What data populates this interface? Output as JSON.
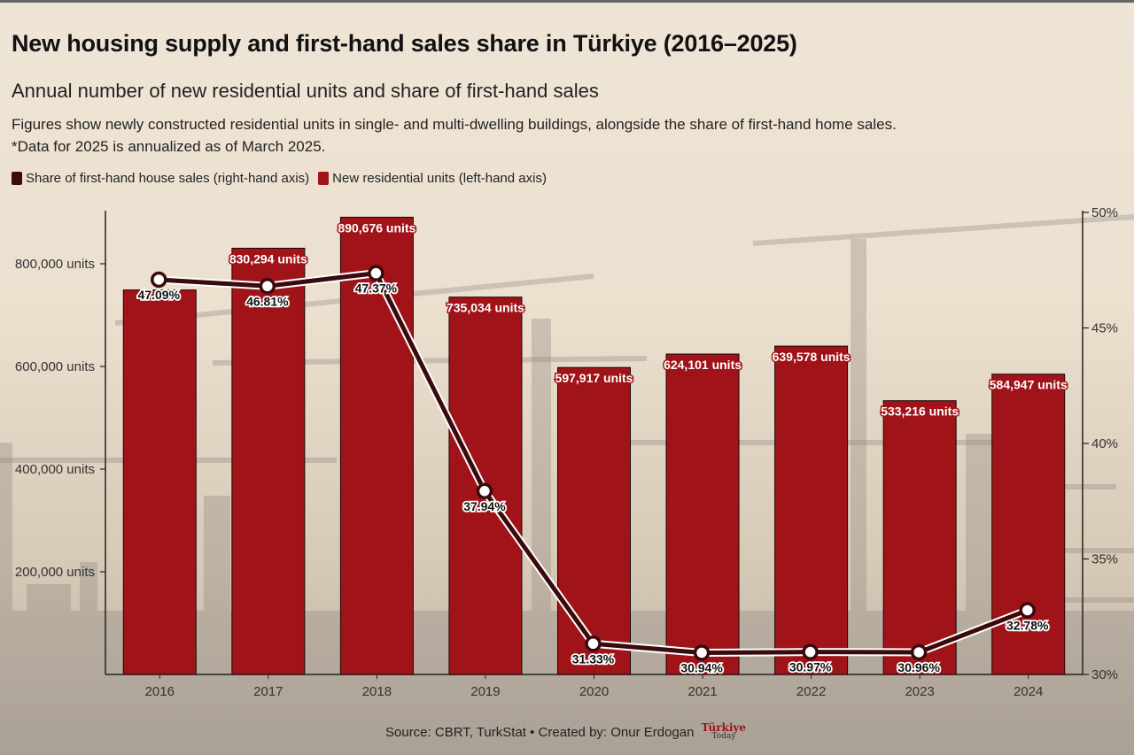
{
  "title": "New housing supply and first-hand sales share in Türkiye (2016–2025)",
  "subtitle": "Annual number of new residential units and share of first-hand sales",
  "description_line1": "Figures show newly constructed residential units in single- and multi-dwelling buildings, alongside the share of first-hand home sales.",
  "description_line2": "*Data for 2025 is annualized as of March 2025.",
  "legend": {
    "line_label": "Share of first-hand house sales (right-hand axis)",
    "bar_label": "New residential units (left-hand axis)"
  },
  "footer": {
    "source": "Source: CBRT, TurkStat • Created by: Onur Erdogan",
    "logo_top": "Türkiye",
    "logo_bottom": "Today"
  },
  "colors": {
    "bar": "#a01319",
    "line": "#3b0a0c",
    "marker_fill": "#ffffff",
    "axis": "#222222"
  },
  "chart_data": {
    "type": "bar",
    "categories": [
      "2016",
      "2017",
      "2018",
      "2019",
      "2020",
      "2021",
      "2022",
      "2023",
      "2024"
    ],
    "series": [
      {
        "name": "New residential units (left-hand axis)",
        "type": "bar",
        "axis": "left",
        "values": [
          749000,
          830294,
          890676,
          735034,
          597917,
          624101,
          639578,
          533216,
          584947
        ],
        "labels": [
          "",
          "830,294 units",
          "890,676 units",
          "735,034 units",
          "597,917 units",
          "624,101 units",
          "639,578 units",
          "533,216 units",
          "584,947 units"
        ]
      },
      {
        "name": "Share of first-hand house sales (right-hand axis)",
        "type": "line",
        "axis": "right",
        "values": [
          47.09,
          46.81,
          47.37,
          37.94,
          31.33,
          30.94,
          30.97,
          30.96,
          32.78
        ],
        "labels": [
          "47.09%",
          "46.81%",
          "47.37%",
          "37.94%",
          "31.33%",
          "30.94%",
          "30.97%",
          "30.96%",
          "32.78%"
        ]
      }
    ],
    "left_axis": {
      "ticks": [
        200000,
        400000,
        600000,
        800000
      ],
      "tick_labels": [
        "200,000 units",
        "400,000 units",
        "600,000 units",
        "800,000 units"
      ]
    },
    "right_axis": {
      "ylim": [
        30,
        50
      ],
      "ticks": [
        30,
        35,
        40,
        45,
        50
      ],
      "tick_labels": [
        "30%",
        "35%",
        "40%",
        "45%",
        "50%"
      ]
    },
    "grid": false,
    "legend_position": "top-left"
  }
}
